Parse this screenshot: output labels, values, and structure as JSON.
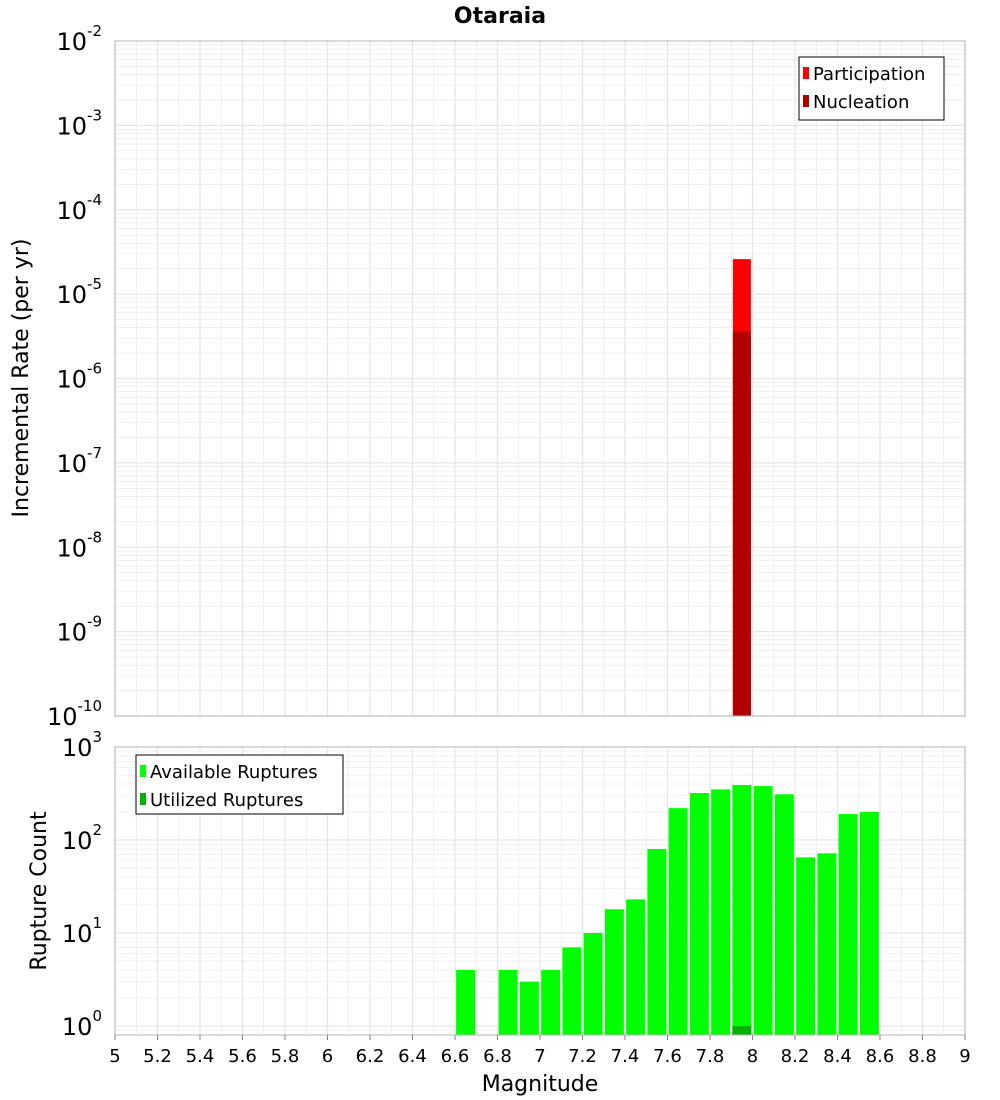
{
  "title": "Otaraia",
  "xlabel": "Magnitude",
  "colors": {
    "participation": "#ff0000",
    "nucleation": "#b20000",
    "available": "#00ff00",
    "utilized": "#00b200",
    "grid": "#e6e6e6",
    "frame": "#b4b4b4"
  },
  "chart_data": [
    {
      "type": "bar",
      "title": "Otaraia",
      "xlabel": "Magnitude",
      "ylabel": "Incremental Rate (per yr)",
      "yscale": "log",
      "xlim": [
        5,
        9
      ],
      "ylim": [
        1e-10,
        0.01
      ],
      "grid": true,
      "legend_position": "top-right",
      "y_ticks": [
        {
          "base": "10",
          "exp": "-10"
        },
        {
          "base": "10",
          "exp": "-9"
        },
        {
          "base": "10",
          "exp": "-8"
        },
        {
          "base": "10",
          "exp": "-7"
        },
        {
          "base": "10",
          "exp": "-6"
        },
        {
          "base": "10",
          "exp": "-5"
        },
        {
          "base": "10",
          "exp": "-4"
        },
        {
          "base": "10",
          "exp": "-3"
        },
        {
          "base": "10",
          "exp": "-2"
        }
      ],
      "series": [
        {
          "name": "Participation",
          "x": [
            7.95
          ],
          "values": [
            2.6e-05
          ]
        },
        {
          "name": "Nucleation",
          "x": [
            7.95
          ],
          "values": [
            3.6e-06
          ]
        }
      ]
    },
    {
      "type": "bar",
      "xlabel": "Magnitude",
      "ylabel": "Rupture Count",
      "yscale": "log",
      "xlim": [
        5,
        9
      ],
      "ylim": [
        0.8,
        1000
      ],
      "grid": true,
      "legend_position": "top-left",
      "y_ticks": [
        {
          "base": "10",
          "exp": "0"
        },
        {
          "base": "10",
          "exp": "1"
        },
        {
          "base": "10",
          "exp": "2"
        },
        {
          "base": "10",
          "exp": "3"
        }
      ],
      "x_ticks": [
        "5",
        "5.2",
        "5.4",
        "5.6",
        "5.8",
        "6",
        "6.2",
        "6.4",
        "6.6",
        "6.8",
        "7",
        "7.2",
        "7.4",
        "7.6",
        "7.8",
        "8",
        "8.2",
        "8.4",
        "8.6",
        "8.8",
        "9"
      ],
      "series": [
        {
          "name": "Available Ruptures",
          "x": [
            6.65,
            6.85,
            6.95,
            7.05,
            7.15,
            7.25,
            7.35,
            7.45,
            7.55,
            7.65,
            7.75,
            7.85,
            7.95,
            8.05,
            8.15,
            8.25,
            8.35,
            8.45,
            8.55
          ],
          "values": [
            4,
            4,
            3,
            4,
            7,
            10,
            18,
            23,
            80,
            220,
            320,
            350,
            390,
            380,
            310,
            65,
            72,
            190,
            200
          ]
        },
        {
          "name": "Utilized Ruptures",
          "x": [
            7.95
          ],
          "values": [
            1
          ]
        }
      ]
    }
  ]
}
